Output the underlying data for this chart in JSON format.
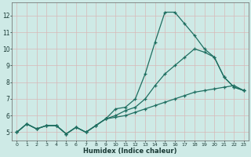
{
  "xlabel": "Humidex (Indice chaleur)",
  "ylabel": "",
  "xlim": [
    -0.5,
    23.5
  ],
  "ylim": [
    4.5,
    12.8
  ],
  "yticks": [
    5,
    6,
    7,
    8,
    9,
    10,
    11,
    12
  ],
  "xticks": [
    0,
    1,
    2,
    3,
    4,
    5,
    6,
    7,
    8,
    9,
    10,
    11,
    12,
    13,
    14,
    15,
    16,
    17,
    18,
    19,
    20,
    21,
    22,
    23
  ],
  "bg_color": "#ceeae6",
  "grid_color": "#d8b8b8",
  "line_color": "#1e6e60",
  "line1": [
    5.0,
    5.5,
    5.2,
    5.4,
    5.4,
    4.9,
    5.3,
    5.0,
    5.4,
    5.8,
    6.4,
    6.5,
    7.0,
    8.5,
    10.4,
    12.2,
    12.2,
    11.5,
    10.8,
    10.0,
    9.5,
    8.3,
    7.7,
    7.5
  ],
  "line2": [
    5.0,
    5.5,
    5.2,
    5.4,
    5.4,
    4.9,
    5.3,
    5.0,
    5.4,
    5.8,
    6.0,
    6.3,
    6.5,
    7.0,
    7.8,
    8.5,
    9.0,
    9.5,
    10.0,
    9.8,
    9.5,
    8.3,
    7.7,
    7.5
  ],
  "line3": [
    5.0,
    5.5,
    5.2,
    5.4,
    5.4,
    4.9,
    5.3,
    5.0,
    5.4,
    5.8,
    5.9,
    6.0,
    6.2,
    6.4,
    6.6,
    6.8,
    7.0,
    7.2,
    7.4,
    7.5,
    7.6,
    7.7,
    7.8,
    7.5
  ]
}
